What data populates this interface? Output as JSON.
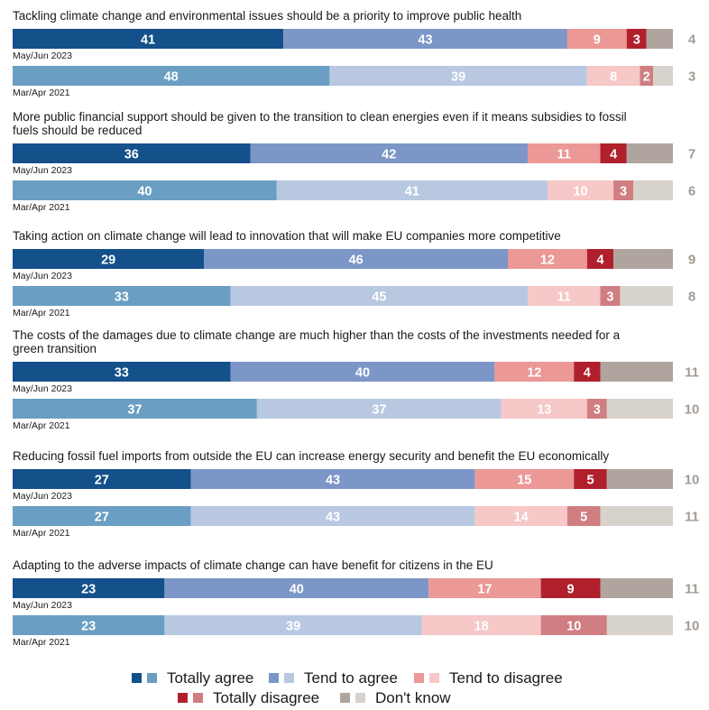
{
  "chart_data": {
    "type": "bar",
    "orientation": "horizontal",
    "stacked": true,
    "series_names": [
      "Totally agree",
      "Tend to agree",
      "Tend to disagree",
      "Totally disagree",
      "Don't know"
    ],
    "colors": {
      "May/Jun 2023": [
        "#14508a",
        "#7b96c7",
        "#eb9896",
        "#b0202c",
        "#b0a59e"
      ],
      "Mar/Apr 2021": [
        "#6a9ec2",
        "#b9c8e1",
        "#f6c8c8",
        "#d07e81",
        "#d8d2cc"
      ],
      "dk_text": "#a39b94"
    },
    "questions": [
      {
        "lines": [
          "Tackling climate change and environmental issues should be a priority to improve public health"
        ],
        "waves": [
          {
            "label": "May/Jun 2023",
            "values": [
              41,
              43,
              9,
              3,
              4
            ]
          },
          {
            "label": "Mar/Apr 2021",
            "values": [
              48,
              39,
              8,
              2,
              3
            ]
          }
        ]
      },
      {
        "lines": [
          "More public financial support should be given to the transition to clean energies even if it means subsidies to fossil",
          "fuels should be reduced"
        ],
        "waves": [
          {
            "label": "May/Jun 2023",
            "values": [
              36,
              42,
              11,
              4,
              7
            ]
          },
          {
            "label": "Mar/Apr 2021",
            "values": [
              40,
              41,
              10,
              3,
              6
            ]
          }
        ]
      },
      {
        "lines": [
          "Taking action on climate change will lead to innovation that will make EU companies more competitive"
        ],
        "waves": [
          {
            "label": "May/Jun 2023",
            "values": [
              29,
              46,
              12,
              4,
              9
            ]
          },
          {
            "label": "Mar/Apr 2021",
            "values": [
              33,
              45,
              11,
              3,
              8
            ]
          }
        ]
      },
      {
        "lines": [
          "The costs of the damages due to climate change are much higher than the costs of the investments needed for a",
          "green transition"
        ],
        "waves": [
          {
            "label": "May/Jun 2023",
            "values": [
              33,
              40,
              12,
              4,
              11
            ]
          },
          {
            "label": "Mar/Apr 2021",
            "values": [
              37,
              37,
              13,
              3,
              10
            ]
          }
        ]
      },
      {
        "lines": [
          "Reducing fossil fuel imports from outside the EU can increase energy security and benefit the EU economically"
        ],
        "waves": [
          {
            "label": "May/Jun 2023",
            "values": [
              27,
              43,
              15,
              5,
              10
            ]
          },
          {
            "label": "Mar/Apr 2021",
            "values": [
              27,
              43,
              14,
              5,
              11
            ]
          }
        ]
      },
      {
        "lines": [
          "Adapting to the adverse impacts of climate change can have benefit for citizens in the EU"
        ],
        "waves": [
          {
            "label": "May/Jun 2023",
            "values": [
              23,
              40,
              17,
              9,
              11
            ]
          },
          {
            "label": "Mar/Apr 2021",
            "values": [
              23,
              39,
              18,
              10,
              10
            ]
          }
        ]
      }
    ],
    "legend": {
      "placement": "bottom",
      "items": [
        "Totally agree",
        "Tend to agree",
        "Tend to disagree",
        "Totally disagree",
        "Don't know"
      ]
    }
  }
}
